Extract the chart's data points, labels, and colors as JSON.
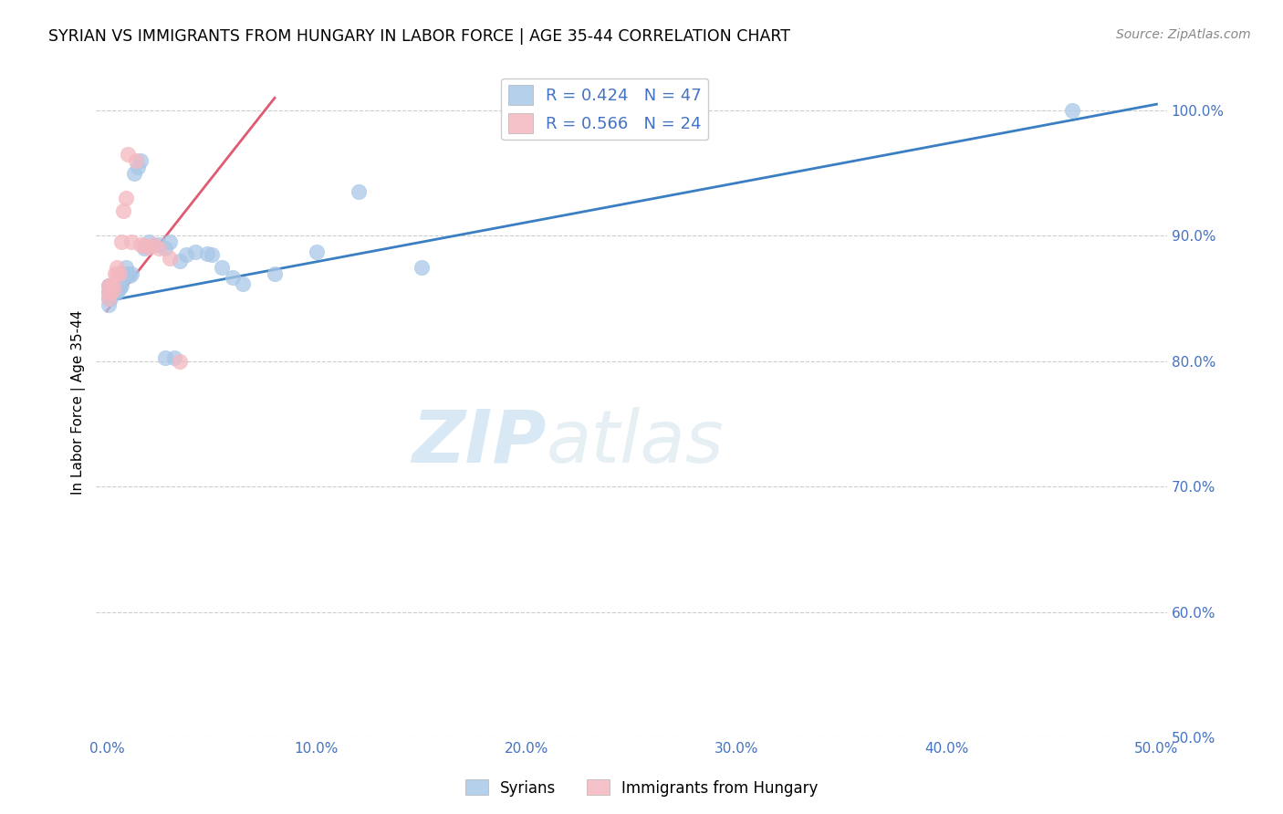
{
  "title": "SYRIAN VS IMMIGRANTS FROM HUNGARY IN LABOR FORCE | AGE 35-44 CORRELATION CHART",
  "source": "Source: ZipAtlas.com",
  "ylabel": "In Labor Force | Age 35-44",
  "xlim": [
    -0.005,
    0.505
  ],
  "ylim": [
    0.5,
    1.035
  ],
  "xticks": [
    0.0,
    0.1,
    0.2,
    0.3,
    0.4,
    0.5
  ],
  "xticklabels": [
    "0.0%",
    "10.0%",
    "20.0%",
    "30.0%",
    "40.0%",
    "50.0%"
  ],
  "yticks": [
    0.5,
    0.6,
    0.7,
    0.8,
    0.9,
    1.0
  ],
  "yticklabels": [
    "50.0%",
    "60.0%",
    "70.0%",
    "80.0%",
    "90.0%",
    "100.0%"
  ],
  "syrian_color": "#a8c8e8",
  "hungary_color": "#f4b8c0",
  "trend_blue": "#3a7fc1",
  "trend_pink": "#e05a72",
  "watermark_zip": "ZIP",
  "watermark_atlas": "atlas",
  "legend_blue_label": "R = 0.424   N = 47",
  "legend_pink_label": "R = 0.566   N = 24",
  "syrians_label": "Syrians",
  "hungary_label": "Immigrants from Hungary",
  "syrian_x": [
    0.001,
    0.001,
    0.001,
    0.001,
    0.002,
    0.002,
    0.002,
    0.003,
    0.003,
    0.003,
    0.004,
    0.005,
    0.005,
    0.005,
    0.006,
    0.006,
    0.007,
    0.007,
    0.008,
    0.009,
    0.01,
    0.011,
    0.012,
    0.013,
    0.015,
    0.016,
    0.018,
    0.02,
    0.022,
    0.025,
    0.028,
    0.03,
    0.035,
    0.038,
    0.042,
    0.048,
    0.05,
    0.055,
    0.06,
    0.065,
    0.08,
    0.1,
    0.12,
    0.15,
    0.46,
    0.032,
    0.028
  ],
  "syrian_y": [
    0.86,
    0.855,
    0.85,
    0.845,
    0.86,
    0.855,
    0.85,
    0.86,
    0.857,
    0.855,
    0.86,
    0.86,
    0.857,
    0.855,
    0.86,
    0.858,
    0.865,
    0.86,
    0.87,
    0.875,
    0.87,
    0.868,
    0.87,
    0.95,
    0.955,
    0.96,
    0.89,
    0.895,
    0.892,
    0.893,
    0.89,
    0.895,
    0.88,
    0.885,
    0.887,
    0.886,
    0.885,
    0.875,
    0.867,
    0.862,
    0.87,
    0.887,
    0.935,
    0.875,
    1.0,
    0.803,
    0.803
  ],
  "hungary_x": [
    0.001,
    0.001,
    0.001,
    0.002,
    0.002,
    0.003,
    0.003,
    0.004,
    0.005,
    0.005,
    0.006,
    0.007,
    0.008,
    0.009,
    0.01,
    0.012,
    0.014,
    0.016,
    0.018,
    0.02,
    0.022,
    0.025,
    0.03,
    0.035
  ],
  "hungary_y": [
    0.86,
    0.855,
    0.85,
    0.86,
    0.855,
    0.86,
    0.857,
    0.87,
    0.875,
    0.87,
    0.87,
    0.895,
    0.92,
    0.93,
    0.965,
    0.895,
    0.96,
    0.893,
    0.892,
    0.891,
    0.893,
    0.89,
    0.882,
    0.8
  ],
  "blue_line_x": [
    0.0,
    0.5
  ],
  "blue_line_y": [
    0.848,
    1.005
  ],
  "pink_line_x": [
    0.0,
    0.08
  ],
  "pink_line_y": [
    0.84,
    1.01
  ]
}
